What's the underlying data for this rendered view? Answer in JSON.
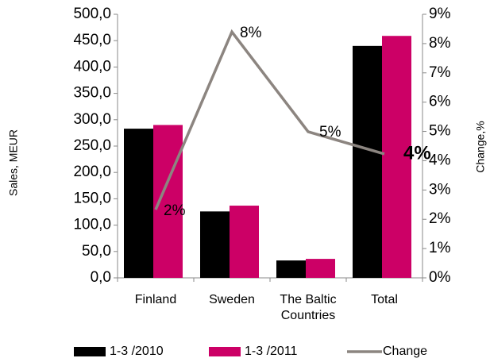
{
  "chart_data": {
    "type": "bar-line",
    "categories": [
      "Finland",
      "Sweden",
      "The Baltic Countries",
      "Total"
    ],
    "series": [
      {
        "name": "1-3 /2010",
        "color": "#000000",
        "values": [
          283,
          126,
          33,
          440
        ]
      },
      {
        "name": "1-3 /2011",
        "color": "#cc0066",
        "values": [
          290,
          137,
          36,
          459
        ]
      },
      {
        "name": "Change",
        "color": "#8c8580",
        "axis": "y2",
        "values": [
          2.33,
          8.4,
          4.99,
          4.23
        ],
        "value_labels": [
          "2%",
          "8%",
          "5%",
          "4%"
        ]
      }
    ],
    "y_label": "Sales, MEUR",
    "y2_label": "Change,%",
    "ylim": [
      0,
      500
    ],
    "yticks": [
      {
        "value": 0,
        "label": "0,0"
      },
      {
        "value": 50,
        "label": "50,0"
      },
      {
        "value": 100,
        "label": "100,0"
      },
      {
        "value": 150,
        "label": "150,0"
      },
      {
        "value": 200,
        "label": "200,0"
      },
      {
        "value": 250,
        "label": "250,0"
      },
      {
        "value": 300,
        "label": "300,0"
      },
      {
        "value": 350,
        "label": "350,0"
      },
      {
        "value": 400,
        "label": "400,0"
      },
      {
        "value": 450,
        "label": "450,0"
      },
      {
        "value": 500,
        "label": "500,0"
      }
    ],
    "y2lim": [
      0,
      9
    ],
    "y2ticks": [
      {
        "value": 0,
        "label": "0%"
      },
      {
        "value": 1,
        "label": "1%"
      },
      {
        "value": 2,
        "label": "2%"
      },
      {
        "value": 3,
        "label": "3%"
      },
      {
        "value": 4,
        "label": "4%"
      },
      {
        "value": 5,
        "label": "5%"
      },
      {
        "value": 6,
        "label": "6%"
      },
      {
        "value": 7,
        "label": "7%"
      },
      {
        "value": 8,
        "label": "8%"
      },
      {
        "value": 9,
        "label": "9%"
      }
    ],
    "grid": false,
    "legend": "bottom"
  }
}
